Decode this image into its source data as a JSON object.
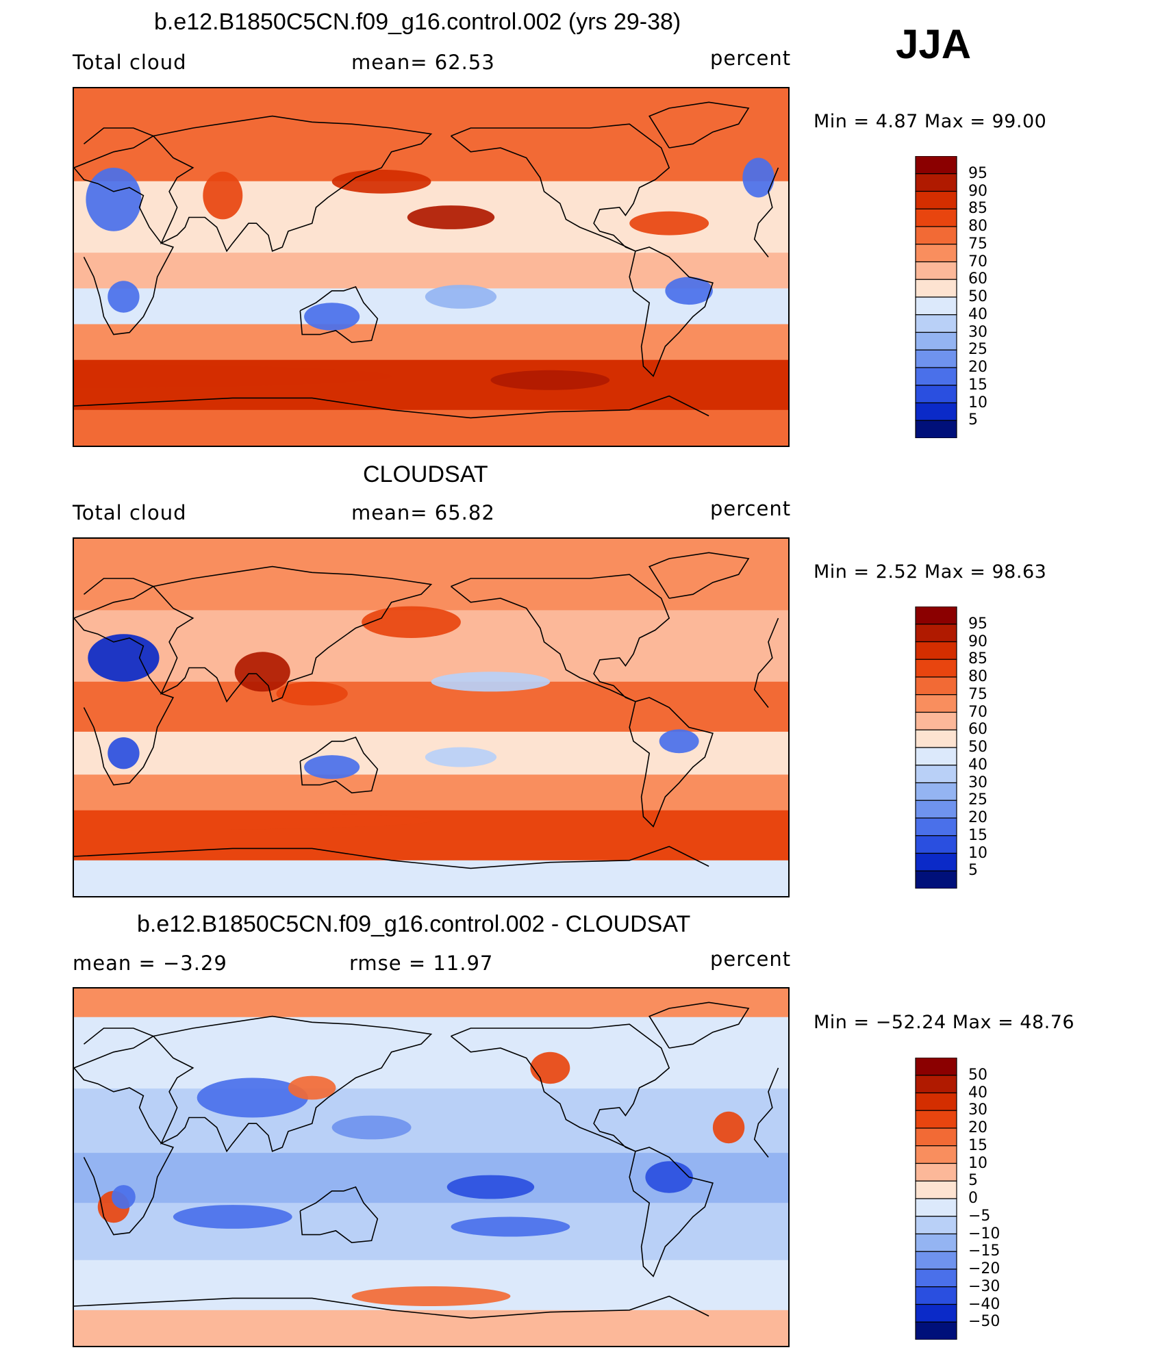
{
  "season": "JJA",
  "panels": [
    {
      "id": "model",
      "title": "b.e12.B1850C5CN.f09_g16.control.002 (yrs 29-38)",
      "left_label": "Total cloud",
      "center_label": "mean=   62.53",
      "right_label": "percent",
      "minmax": "Min =    4.87  Max =    99.00",
      "levels": [
        "95",
        "90",
        "85",
        "80",
        "75",
        "70",
        "60",
        "50",
        "40",
        "30",
        "25",
        "20",
        "15",
        "10",
        "5"
      ],
      "colors": [
        "#8b0000",
        "#b01a00",
        "#d42e00",
        "#e8450f",
        "#f26a35",
        "#f98e5e",
        "#fcb899",
        "#fde3d1",
        "#dce9fb",
        "#b9d0f7",
        "#94b4f2",
        "#6f93ee",
        "#4a70ea",
        "#2a4fe0",
        "#0b2ac8",
        "#00107a"
      ]
    },
    {
      "id": "obs",
      "title": "CLOUDSAT",
      "left_label": "Total cloud",
      "center_label": "mean=   65.82",
      "right_label": "percent",
      "minmax": "Min =    2.52  Max =    98.63",
      "levels": [
        "95",
        "90",
        "85",
        "80",
        "75",
        "70",
        "60",
        "50",
        "40",
        "30",
        "25",
        "20",
        "15",
        "10",
        "5"
      ],
      "colors": [
        "#8b0000",
        "#b01a00",
        "#d42e00",
        "#e8450f",
        "#f26a35",
        "#f98e5e",
        "#fcb899",
        "#fde3d1",
        "#dce9fb",
        "#b9d0f7",
        "#94b4f2",
        "#6f93ee",
        "#4a70ea",
        "#2a4fe0",
        "#0b2ac8",
        "#00107a"
      ]
    },
    {
      "id": "diff",
      "title": "b.e12.B1850C5CN.f09_g16.control.002 - CLOUDSAT",
      "left_label": "mean =   −3.29",
      "center_label": "rmse =   11.97",
      "right_label": "percent",
      "minmax": "Min = −52.24  Max =    48.76",
      "levels": [
        "50",
        "40",
        "30",
        "20",
        "15",
        "10",
        "5",
        "0",
        "−5",
        "−10",
        "−15",
        "−20",
        "−30",
        "−40",
        "−50"
      ],
      "colors": [
        "#8b0000",
        "#b01a00",
        "#d42e00",
        "#e8450f",
        "#f26a35",
        "#f98e5e",
        "#fcb899",
        "#fde3d1",
        "#dce9fb",
        "#b9d0f7",
        "#94b4f2",
        "#6f93ee",
        "#4a70ea",
        "#2a4fe0",
        "#0b2ac8",
        "#00107a"
      ]
    }
  ]
}
